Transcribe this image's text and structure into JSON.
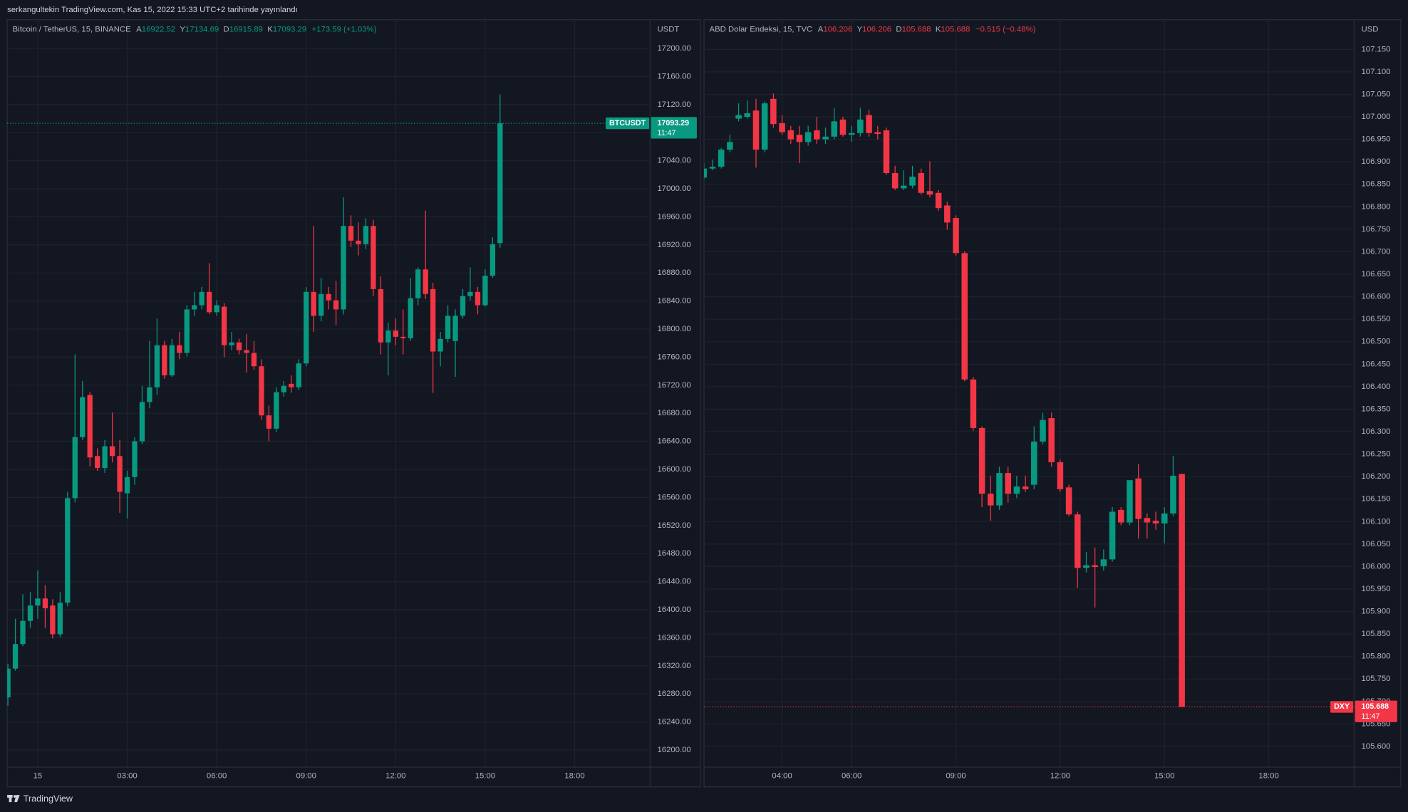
{
  "header": {
    "published": "serkangultekin TradingView.com, Kas 15, 2022 15:33 UTC+2 tarihinde yayınlandı"
  },
  "footer": {
    "brand": "TradingView"
  },
  "chart_data": [
    {
      "type": "candlestick",
      "legend": {
        "symbol": "Bitcoin / TetherUS, 15, BINANCE",
        "ohlc_labels": [
          "A",
          "Y",
          "D",
          "K"
        ],
        "change": "+173.59 (+1.03%)"
      },
      "unit": "USDT",
      "symbol_tag": "BTCUSDT",
      "countdown": "11:47",
      "up_color": "#089981",
      "down_color": "#f23645",
      "grid": true,
      "xlim": [
        -1.024,
        20.53
      ],
      "ylim": [
        16175.6,
        17217.9
      ],
      "xticks": [
        {
          "value": 0,
          "label": "15"
        },
        {
          "value": 3,
          "label": "03:00"
        },
        {
          "value": 6,
          "label": "06:00"
        },
        {
          "value": 9,
          "label": "09:00"
        },
        {
          "value": 12,
          "label": "12:00"
        },
        {
          "value": 15,
          "label": "15:00"
        },
        {
          "value": 18,
          "label": "18:00"
        }
      ],
      "yticks": [
        {
          "value": 16200,
          "label": "16200.00"
        },
        {
          "value": 16240,
          "label": "16240.00"
        },
        {
          "value": 16280,
          "label": "16280.00"
        },
        {
          "value": 16320,
          "label": "16320.00"
        },
        {
          "value": 16360,
          "label": "16360.00"
        },
        {
          "value": 16400,
          "label": "16400.00"
        },
        {
          "value": 16440,
          "label": "16440.00"
        },
        {
          "value": 16480,
          "label": "16480.00"
        },
        {
          "value": 16520,
          "label": "16520.00"
        },
        {
          "value": 16560,
          "label": "16560.00"
        },
        {
          "value": 16600,
          "label": "16600.00"
        },
        {
          "value": 16640,
          "label": "16640.00"
        },
        {
          "value": 16680,
          "label": "16680.00"
        },
        {
          "value": 16720,
          "label": "16720.00"
        },
        {
          "value": 16760,
          "label": "16760.00"
        },
        {
          "value": 16800,
          "label": "16800.00"
        },
        {
          "value": 16840,
          "label": "16840.00"
        },
        {
          "value": 16880,
          "label": "16880.00"
        },
        {
          "value": 16920,
          "label": "16920.00"
        },
        {
          "value": 16960,
          "label": "16960.00"
        },
        {
          "value": 17000,
          "label": "17000.00"
        },
        {
          "value": 17040,
          "label": "17040.00"
        },
        {
          "value": 17080,
          "label": "17080.00"
        },
        {
          "value": 17120,
          "label": "17120.00"
        },
        {
          "value": 17160,
          "label": "17160.00"
        },
        {
          "value": 17200,
          "label": "17200.00"
        }
      ],
      "x": [
        -1,
        -0.75,
        -0.5,
        -0.25,
        0,
        0.25,
        0.5,
        0.75,
        1,
        1.25,
        1.5,
        1.75,
        2,
        2.25,
        2.5,
        2.75,
        3,
        3.25,
        3.5,
        3.75,
        4,
        4.25,
        4.5,
        4.75,
        5,
        5.25,
        5.5,
        5.75,
        6,
        6.25,
        6.5,
        6.75,
        7,
        7.25,
        7.5,
        7.75,
        8,
        8.25,
        8.5,
        8.75,
        9,
        9.25,
        9.5,
        9.75,
        10,
        10.25,
        10.5,
        10.75,
        11,
        11.25,
        11.5,
        11.75,
        12,
        12.25,
        12.5,
        12.75,
        13,
        13.25,
        13.5,
        13.75,
        14,
        14.25,
        14.5,
        14.75,
        15,
        15.25,
        15.5
      ],
      "open": [
        16275,
        16316,
        16351,
        16384,
        16406,
        16416,
        16406,
        16365,
        16410,
        16559,
        16646,
        16706,
        16619,
        16602,
        16633,
        16619,
        16566,
        16589,
        16640,
        16696,
        16717,
        16777,
        16734,
        16777,
        16766,
        16828,
        16834,
        16853,
        16824,
        16832,
        16777,
        16781,
        16770,
        16766,
        16747,
        16677,
        16658,
        16710,
        16722,
        16717,
        16751,
        16853,
        16819,
        16850,
        16841,
        16828,
        16947,
        16926,
        16921,
        16947,
        16857,
        16781,
        16798,
        16789,
        16787,
        16844,
        16885,
        16857,
        16768,
        16786,
        16783,
        16819,
        16847,
        16853,
        16834,
        16876,
        16922.52
      ],
      "high": [
        16323,
        16387,
        16422,
        16425,
        16456,
        16435,
        16415,
        16425,
        16568,
        16764,
        16726,
        16710,
        16630,
        16642,
        16681,
        16642,
        16598,
        16646,
        16719,
        16783,
        16815,
        16783,
        16786,
        16796,
        16834,
        16853,
        16860,
        16894,
        16841,
        16837,
        16796,
        16786,
        16793,
        16783,
        16757,
        16691,
        16717,
        16726,
        16734,
        16757,
        16860,
        16947,
        16873,
        16860,
        16869,
        16988,
        16962,
        16952,
        16958,
        16956,
        16875,
        16809,
        16815,
        16828,
        16873,
        16888,
        16969,
        16866,
        16796,
        16834,
        16828,
        16857,
        16888,
        16860,
        16885,
        16931,
        17134.69
      ],
      "low": [
        16263,
        16313,
        16348,
        16374,
        16387,
        16374,
        16359,
        16361,
        16405,
        16553,
        16642,
        16604,
        16598,
        16595,
        16610,
        16538,
        16530,
        16578,
        16636,
        16687,
        16706,
        16729,
        16732,
        16757,
        16761,
        16819,
        16828,
        16821,
        16819,
        16760,
        16770,
        16764,
        16738,
        16742,
        16671,
        16640,
        16653,
        16704,
        16709,
        16713,
        16747,
        16796,
        16811,
        16828,
        16806,
        16821,
        16917,
        16905,
        16914,
        16847,
        16764,
        16734,
        16777,
        16764,
        16783,
        16834,
        16843,
        16709,
        16747,
        16781,
        16732,
        16815,
        16841,
        16821,
        16832,
        16873,
        16915.89
      ],
      "close": [
        16316,
        16351,
        16384,
        16406,
        16416,
        16402,
        16365,
        16410,
        16559,
        16646,
        16703,
        16617,
        16602,
        16633,
        16619,
        16568,
        16589,
        16640,
        16696,
        16717,
        16777,
        16734,
        16777,
        16766,
        16828,
        16834,
        16853,
        16824,
        16834,
        16777,
        16781,
        16770,
        16766,
        16747,
        16677,
        16658,
        16710,
        16719,
        16717,
        16751,
        16853,
        16819,
        16850,
        16841,
        16828,
        16947,
        16926,
        16921,
        16947,
        16857,
        16781,
        16798,
        16789,
        16787,
        16844,
        16885,
        16850,
        16768,
        16786,
        16819,
        16819,
        16847,
        16853,
        16834,
        16876,
        16921,
        17093.29
      ]
    },
    {
      "type": "candlestick",
      "legend": {
        "symbol": "ABD Dolar Endeksi, 15, TVC",
        "ohlc_labels": [
          "A",
          "Y",
          "D",
          "K"
        ],
        "change": "−0.515 (−0.48%)"
      },
      "unit": "USD",
      "symbol_tag": "DXY",
      "countdown": "11:47",
      "up_color": "#089981",
      "down_color": "#f23645",
      "grid": true,
      "xlim": [
        1.754,
        20.455
      ],
      "ylim": [
        105.554,
        107.18
      ],
      "xticks": [
        {
          "value": 4,
          "label": "04:00"
        },
        {
          "value": 6,
          "label": "06:00"
        },
        {
          "value": 9,
          "label": "09:00"
        },
        {
          "value": 12,
          "label": "12:00"
        },
        {
          "value": 15,
          "label": "15:00"
        },
        {
          "value": 18,
          "label": "18:00"
        }
      ],
      "yticks": [
        {
          "value": 105.6,
          "label": "105.600"
        },
        {
          "value": 105.65,
          "label": "105.650"
        },
        {
          "value": 105.7,
          "label": "105.700"
        },
        {
          "value": 105.75,
          "label": "105.750"
        },
        {
          "value": 105.8,
          "label": "105.800"
        },
        {
          "value": 105.85,
          "label": "105.850"
        },
        {
          "value": 105.9,
          "label": "105.900"
        },
        {
          "value": 105.95,
          "label": "105.950"
        },
        {
          "value": 106,
          "label": "106.000"
        },
        {
          "value": 106.05,
          "label": "106.050"
        },
        {
          "value": 106.1,
          "label": "106.100"
        },
        {
          "value": 106.15,
          "label": "106.150"
        },
        {
          "value": 106.2,
          "label": "106.200"
        },
        {
          "value": 106.25,
          "label": "106.250"
        },
        {
          "value": 106.3,
          "label": "106.300"
        },
        {
          "value": 106.35,
          "label": "106.350"
        },
        {
          "value": 106.4,
          "label": "106.400"
        },
        {
          "value": 106.45,
          "label": "106.450"
        },
        {
          "value": 106.5,
          "label": "106.500"
        },
        {
          "value": 106.55,
          "label": "106.550"
        },
        {
          "value": 106.6,
          "label": "106.600"
        },
        {
          "value": 106.65,
          "label": "106.650"
        },
        {
          "value": 106.7,
          "label": "106.700"
        },
        {
          "value": 106.75,
          "label": "106.750"
        },
        {
          "value": 106.8,
          "label": "106.800"
        },
        {
          "value": 106.85,
          "label": "106.850"
        },
        {
          "value": 106.9,
          "label": "106.900"
        },
        {
          "value": 106.95,
          "label": "106.950"
        },
        {
          "value": 107,
          "label": "107.000"
        },
        {
          "value": 107.05,
          "label": "107.050"
        },
        {
          "value": 107.1,
          "label": "107.100"
        },
        {
          "value": 107.15,
          "label": "107.150"
        }
      ],
      "x": [
        1.75,
        2,
        2.25,
        2.5,
        2.75,
        3,
        3.25,
        3.5,
        3.75,
        4,
        4.25,
        4.5,
        4.75,
        5,
        5.25,
        5.5,
        5.75,
        6,
        6.25,
        6.5,
        6.75,
        7,
        7.25,
        7.5,
        7.75,
        8,
        8.25,
        8.5,
        8.75,
        9,
        9.25,
        9.5,
        9.75,
        10,
        10.25,
        10.5,
        10.75,
        11,
        11.25,
        11.5,
        11.75,
        12,
        12.25,
        12.5,
        12.75,
        13,
        13.25,
        13.5,
        13.75,
        14,
        14.25,
        14.5,
        14.75,
        15,
        15.25,
        15.5
      ],
      "open": [
        106.865,
        106.885,
        106.889,
        106.927,
        106.996,
        107.0,
        107.014,
        106.927,
        107.04,
        106.986,
        106.97,
        106.96,
        106.944,
        106.97,
        106.95,
        106.956,
        106.994,
        106.96,
        106.964,
        107.004,
        106.966,
        106.97,
        106.875,
        106.841,
        106.847,
        106.875,
        106.835,
        106.831,
        106.803,
        106.775,
        106.697,
        106.416,
        106.308,
        106.162,
        106.136,
        106.208,
        106.162,
        106.178,
        106.182,
        106.278,
        106.33,
        106.232,
        106.176,
        106.116,
        105.997,
        106.003,
        106.001,
        106.016,
        106.126,
        106.098,
        106.196,
        106.108,
        106.102,
        106.096,
        106.118,
        106.206
      ],
      "high": [
        106.897,
        106.905,
        106.931,
        106.96,
        107.03,
        107.036,
        107.04,
        107.034,
        107.052,
        107.004,
        106.98,
        106.98,
        106.98,
        107.0,
        106.976,
        107.02,
        107.0,
        106.98,
        107.02,
        107.016,
        106.98,
        106.976,
        106.891,
        106.881,
        106.891,
        106.885,
        106.901,
        106.837,
        106.811,
        106.781,
        106.701,
        106.422,
        106.312,
        106.202,
        106.222,
        106.222,
        106.202,
        106.202,
        106.312,
        106.342,
        106.342,
        106.238,
        106.182,
        106.122,
        106.032,
        106.042,
        106.038,
        106.132,
        106.132,
        106.192,
        106.228,
        106.118,
        106.122,
        106.132,
        106.246,
        106.206
      ],
      "low": [
        106.861,
        106.881,
        106.885,
        106.921,
        106.99,
        106.996,
        106.887,
        106.921,
        106.976,
        106.96,
        106.94,
        106.897,
        106.936,
        106.94,
        106.94,
        106.95,
        106.956,
        106.944,
        106.956,
        106.956,
        106.95,
        106.871,
        106.837,
        106.837,
        106.841,
        106.827,
        106.821,
        106.791,
        106.749,
        106.691,
        106.412,
        106.302,
        106.132,
        106.102,
        106.126,
        106.142,
        106.152,
        106.166,
        106.172,
        106.272,
        106.222,
        106.166,
        106.112,
        105.953,
        105.987,
        105.909,
        105.991,
        106.011,
        106.092,
        106.092,
        106.062,
        106.062,
        106.082,
        106.052,
        106.112,
        105.688
      ],
      "close": [
        106.885,
        106.889,
        106.927,
        106.944,
        107.004,
        107.008,
        106.927,
        107.03,
        106.984,
        106.966,
        106.95,
        106.944,
        106.966,
        106.95,
        106.956,
        106.99,
        106.96,
        106.964,
        106.994,
        106.964,
        106.962,
        106.875,
        106.841,
        106.847,
        106.867,
        106.831,
        106.827,
        106.797,
        106.765,
        106.697,
        106.416,
        106.308,
        106.162,
        106.136,
        106.208,
        106.162,
        106.178,
        106.172,
        106.278,
        106.326,
        106.232,
        106.172,
        106.116,
        105.997,
        106.003,
        105.999,
        106.016,
        106.122,
        106.098,
        106.192,
        106.106,
        106.098,
        106.096,
        106.118,
        106.202,
        105.688
      ]
    }
  ]
}
